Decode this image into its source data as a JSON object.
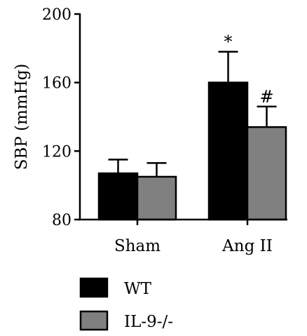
{
  "chart_data": {
    "type": "bar",
    "title": "",
    "xlabel": "",
    "ylabel": "SBP (mmHg)",
    "ylim": [
      80,
      200
    ],
    "yticks": [
      80,
      120,
      160,
      200
    ],
    "categories": [
      "Sham",
      "Ang II"
    ],
    "series": [
      {
        "name": "WT",
        "color": "#000000",
        "values": [
          107,
          160
        ],
        "errors": [
          8,
          18
        ]
      },
      {
        "name": "IL-9-/-",
        "color": "#808080",
        "values": [
          105,
          134
        ],
        "errors": [
          8,
          12
        ]
      }
    ],
    "annotations": [
      {
        "series": 0,
        "category": 1,
        "text": "*"
      },
      {
        "series": 1,
        "category": 1,
        "text": "#"
      }
    ],
    "grid": false,
    "legend_position": "bottom-left"
  }
}
